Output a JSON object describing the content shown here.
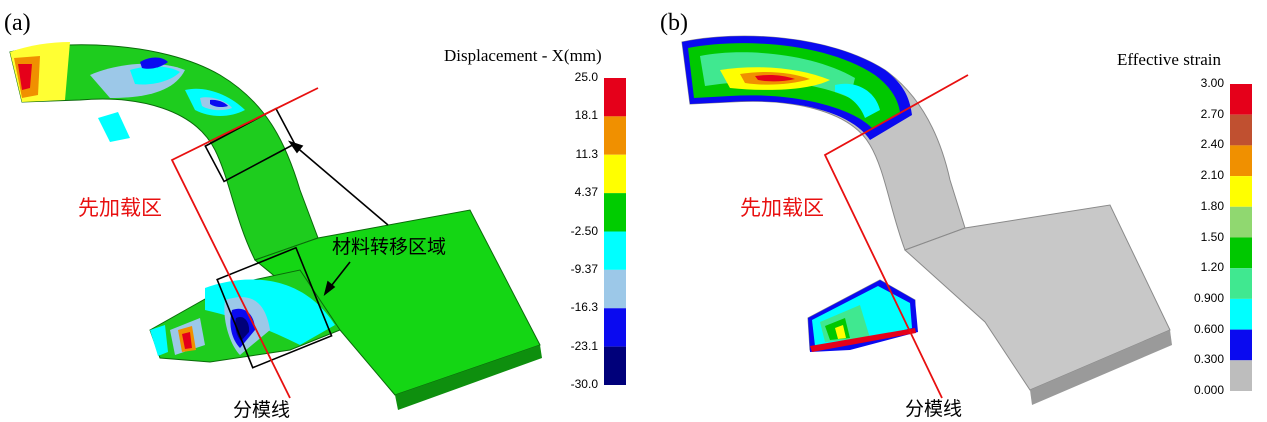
{
  "panel_a": {
    "letter": "(a)",
    "colorbar_title": "Displacement - X(mm)",
    "ticks": [
      "25.0",
      "18.1",
      "11.3",
      "4.37",
      "-2.50",
      "-9.37",
      "-16.3",
      "-23.1",
      "-30.0"
    ],
    "bands": [
      "#e5001a",
      "#f09000",
      "#ffff00",
      "#00cc00",
      "#00ffff",
      "#9cc8e8",
      "#0a0af0",
      "#00007a"
    ],
    "label_preload": "先加载区",
    "label_transfer": "材料转移区域",
    "label_parting": "分模线"
  },
  "panel_b": {
    "letter": "(b)",
    "colorbar_title": "Effective strain",
    "ticks": [
      "3.00",
      "2.70",
      "2.40",
      "2.10",
      "1.80",
      "1.50",
      "1.20",
      "0.900",
      "0.600",
      "0.300",
      "0.000"
    ],
    "bands": [
      "#e5001a",
      "#c05030",
      "#f09000",
      "#ffff00",
      "#90d870",
      "#00c800",
      "#40e890",
      "#00ffff",
      "#0a0af0",
      "#bdbdbd"
    ],
    "label_preload": "先加载区",
    "label_parting": "分模线"
  }
}
